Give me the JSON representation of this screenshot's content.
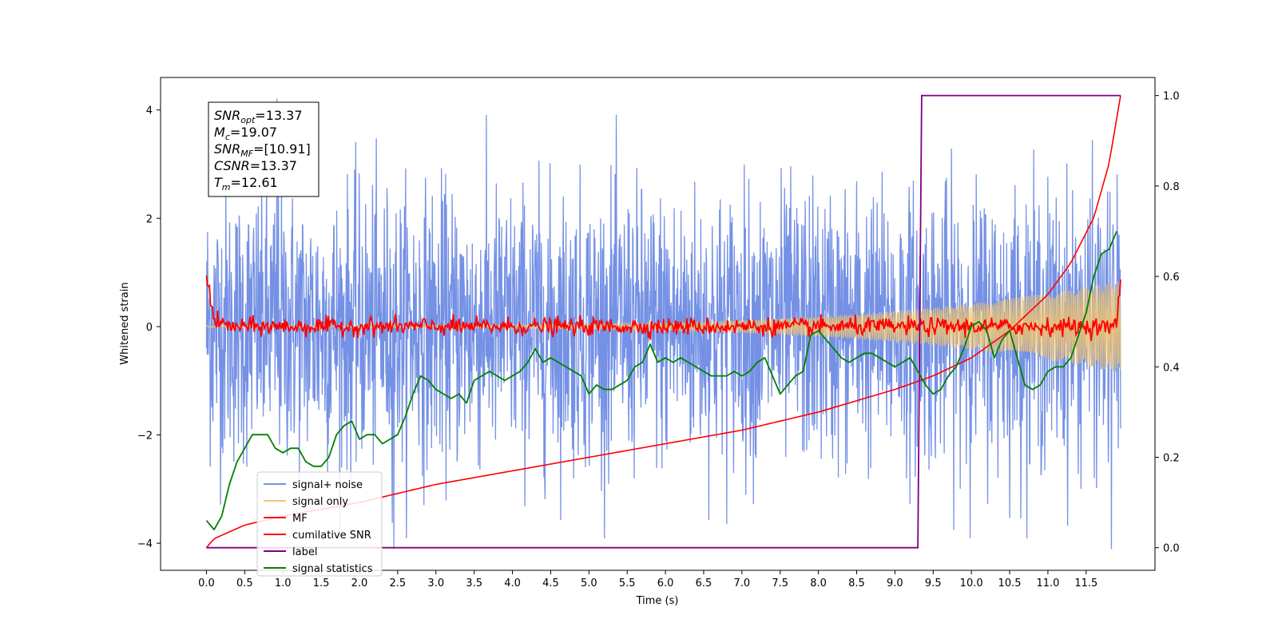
{
  "chart_data": {
    "type": "line",
    "xlabel": "Time (s)",
    "ylabel": "Whitened strain",
    "xlim": [
      -0.6,
      12.4
    ],
    "ylim": [
      -4.5,
      4.6
    ],
    "y2lim": [
      -0.05,
      1.04
    ],
    "x_ticks": [
      0.0,
      0.5,
      1.0,
      1.5,
      2.0,
      2.5,
      3.0,
      3.5,
      4.0,
      4.5,
      5.0,
      5.5,
      6.0,
      6.5,
      7.0,
      7.5,
      8.0,
      8.5,
      9.0,
      9.5,
      10.0,
      10.5,
      11.0,
      11.5
    ],
    "x_tick_labels": [
      "0.0",
      "0.5",
      "1.0",
      "1.5",
      "2.0",
      "2.5",
      "3.0",
      "3.5",
      "4.0",
      "4.5",
      "5.0",
      "5.5",
      "6.0",
      "6.5",
      "7.0",
      "7.5",
      "8.0",
      "8.5",
      "9.0",
      "9.5",
      "10.0",
      "10.5",
      "11.0",
      "11.5"
    ],
    "y_ticks": [
      -4,
      -2,
      0,
      2,
      4
    ],
    "y_tick_labels": [
      "−4",
      "−2",
      "0",
      "2",
      "4"
    ],
    "y2_ticks": [
      0.0,
      0.2,
      0.4,
      0.6,
      0.8,
      1.0
    ],
    "y2_tick_labels": [
      "0.0",
      "0.2",
      "0.4",
      "0.6",
      "0.8",
      "1.0"
    ],
    "grid": false,
    "legend_position": "lower-left",
    "info_box": {
      "position": "top-left",
      "lines": [
        {
          "sym": "SNR",
          "sub": "opt",
          "value": "=13.37"
        },
        {
          "sym": "M",
          "sub": "c",
          "value": "=19.07"
        },
        {
          "sym": "SNR",
          "sub": "MF",
          "value": "=[10.91]"
        },
        {
          "sym": "CSNR",
          "sub": "",
          "value": "=13.37"
        },
        {
          "sym": "T",
          "sub": "m",
          "value": "=12.61"
        }
      ]
    },
    "series": [
      {
        "name": "signal+ noise",
        "color": "#7591e5",
        "axis": "left",
        "kind": "noise",
        "x_range": [
          0.0,
          11.95
        ],
        "sigma": 1.25,
        "extremes": [
          4.2,
          -4.1
        ]
      },
      {
        "name": "signal only",
        "color": "#f2c46d",
        "axis": "left",
        "kind": "chirp",
        "x_range": [
          0.0,
          11.95
        ],
        "amplitude_start": 0.02,
        "amplitude_end": 0.85
      },
      {
        "name": "MF",
        "color": "#ff0000",
        "axis": "left",
        "kind": "noise",
        "x": [
          0.0,
          0.1,
          0.3,
          1.0,
          2.0,
          3.0,
          4.0,
          5.0,
          6.0,
          7.0,
          8.0,
          9.0,
          10.0,
          11.0,
          11.9,
          11.95
        ],
        "y": [
          1.0,
          0.1,
          0.0,
          0.0,
          0.0,
          0.0,
          0.0,
          0.0,
          0.0,
          0.0,
          0.0,
          0.0,
          0.0,
          0.0,
          0.0,
          0.95
        ],
        "jitter": 0.08
      },
      {
        "name": "cumilative SNR",
        "color": "#ff0000",
        "axis": "right",
        "x": [
          0.0,
          0.1,
          0.5,
          1.0,
          2.0,
          3.0,
          4.0,
          5.0,
          6.0,
          7.0,
          8.0,
          9.0,
          9.5,
          10.0,
          10.5,
          11.0,
          11.3,
          11.6,
          11.8,
          11.95
        ],
        "y": [
          0.0,
          0.02,
          0.05,
          0.07,
          0.1,
          0.14,
          0.17,
          0.2,
          0.23,
          0.26,
          0.3,
          0.35,
          0.38,
          0.42,
          0.48,
          0.56,
          0.63,
          0.73,
          0.85,
          1.0
        ]
      },
      {
        "name": "label",
        "color": "#800080",
        "axis": "right",
        "x": [
          0.0,
          9.3,
          9.35,
          11.95
        ],
        "y": [
          0.0,
          0.0,
          1.0,
          1.0
        ]
      },
      {
        "name": "signal statistics",
        "color": "#008000",
        "axis": "right",
        "x": [
          0.0,
          0.1,
          0.2,
          0.3,
          0.4,
          0.5,
          0.6,
          0.7,
          0.8,
          0.9,
          1.0,
          1.1,
          1.2,
          1.3,
          1.4,
          1.5,
          1.6,
          1.7,
          1.8,
          1.9,
          2.0,
          2.1,
          2.2,
          2.3,
          2.4,
          2.5,
          2.6,
          2.7,
          2.8,
          2.9,
          3.0,
          3.1,
          3.2,
          3.3,
          3.4,
          3.5,
          3.6,
          3.7,
          3.8,
          3.9,
          4.0,
          4.1,
          4.2,
          4.3,
          4.4,
          4.5,
          4.6,
          4.7,
          4.8,
          4.9,
          5.0,
          5.1,
          5.2,
          5.3,
          5.4,
          5.5,
          5.6,
          5.7,
          5.8,
          5.9,
          6.0,
          6.1,
          6.2,
          6.3,
          6.4,
          6.5,
          6.6,
          6.7,
          6.8,
          6.9,
          7.0,
          7.1,
          7.2,
          7.3,
          7.4,
          7.5,
          7.6,
          7.7,
          7.8,
          7.9,
          8.0,
          8.1,
          8.2,
          8.3,
          8.4,
          8.5,
          8.6,
          8.7,
          8.8,
          8.9,
          9.0,
          9.1,
          9.2,
          9.3,
          9.4,
          9.5,
          9.6,
          9.7,
          9.8,
          9.9,
          10.0,
          10.1,
          10.2,
          10.3,
          10.4,
          10.5,
          10.6,
          10.7,
          10.8,
          10.9,
          11.0,
          11.1,
          11.2,
          11.3,
          11.4,
          11.5,
          11.6,
          11.7,
          11.8,
          11.9
        ],
        "y": [
          0.06,
          0.04,
          0.07,
          0.14,
          0.19,
          0.22,
          0.25,
          0.25,
          0.25,
          0.22,
          0.21,
          0.22,
          0.22,
          0.19,
          0.18,
          0.18,
          0.2,
          0.25,
          0.27,
          0.28,
          0.24,
          0.25,
          0.25,
          0.23,
          0.24,
          0.25,
          0.29,
          0.34,
          0.38,
          0.37,
          0.35,
          0.34,
          0.33,
          0.34,
          0.32,
          0.37,
          0.38,
          0.39,
          0.38,
          0.37,
          0.38,
          0.39,
          0.41,
          0.44,
          0.41,
          0.42,
          0.41,
          0.4,
          0.39,
          0.38,
          0.34,
          0.36,
          0.35,
          0.35,
          0.36,
          0.37,
          0.4,
          0.41,
          0.45,
          0.41,
          0.42,
          0.41,
          0.42,
          0.41,
          0.4,
          0.39,
          0.38,
          0.38,
          0.38,
          0.39,
          0.38,
          0.39,
          0.41,
          0.42,
          0.38,
          0.34,
          0.36,
          0.38,
          0.39,
          0.47,
          0.48,
          0.46,
          0.44,
          0.42,
          0.41,
          0.42,
          0.43,
          0.43,
          0.42,
          0.41,
          0.4,
          0.41,
          0.42,
          0.39,
          0.36,
          0.34,
          0.35,
          0.38,
          0.4,
          0.44,
          0.49,
          0.5,
          0.48,
          0.42,
          0.46,
          0.48,
          0.42,
          0.36,
          0.35,
          0.36,
          0.39,
          0.4,
          0.4,
          0.42,
          0.47,
          0.52,
          0.6,
          0.65,
          0.66,
          0.7
        ]
      }
    ]
  }
}
